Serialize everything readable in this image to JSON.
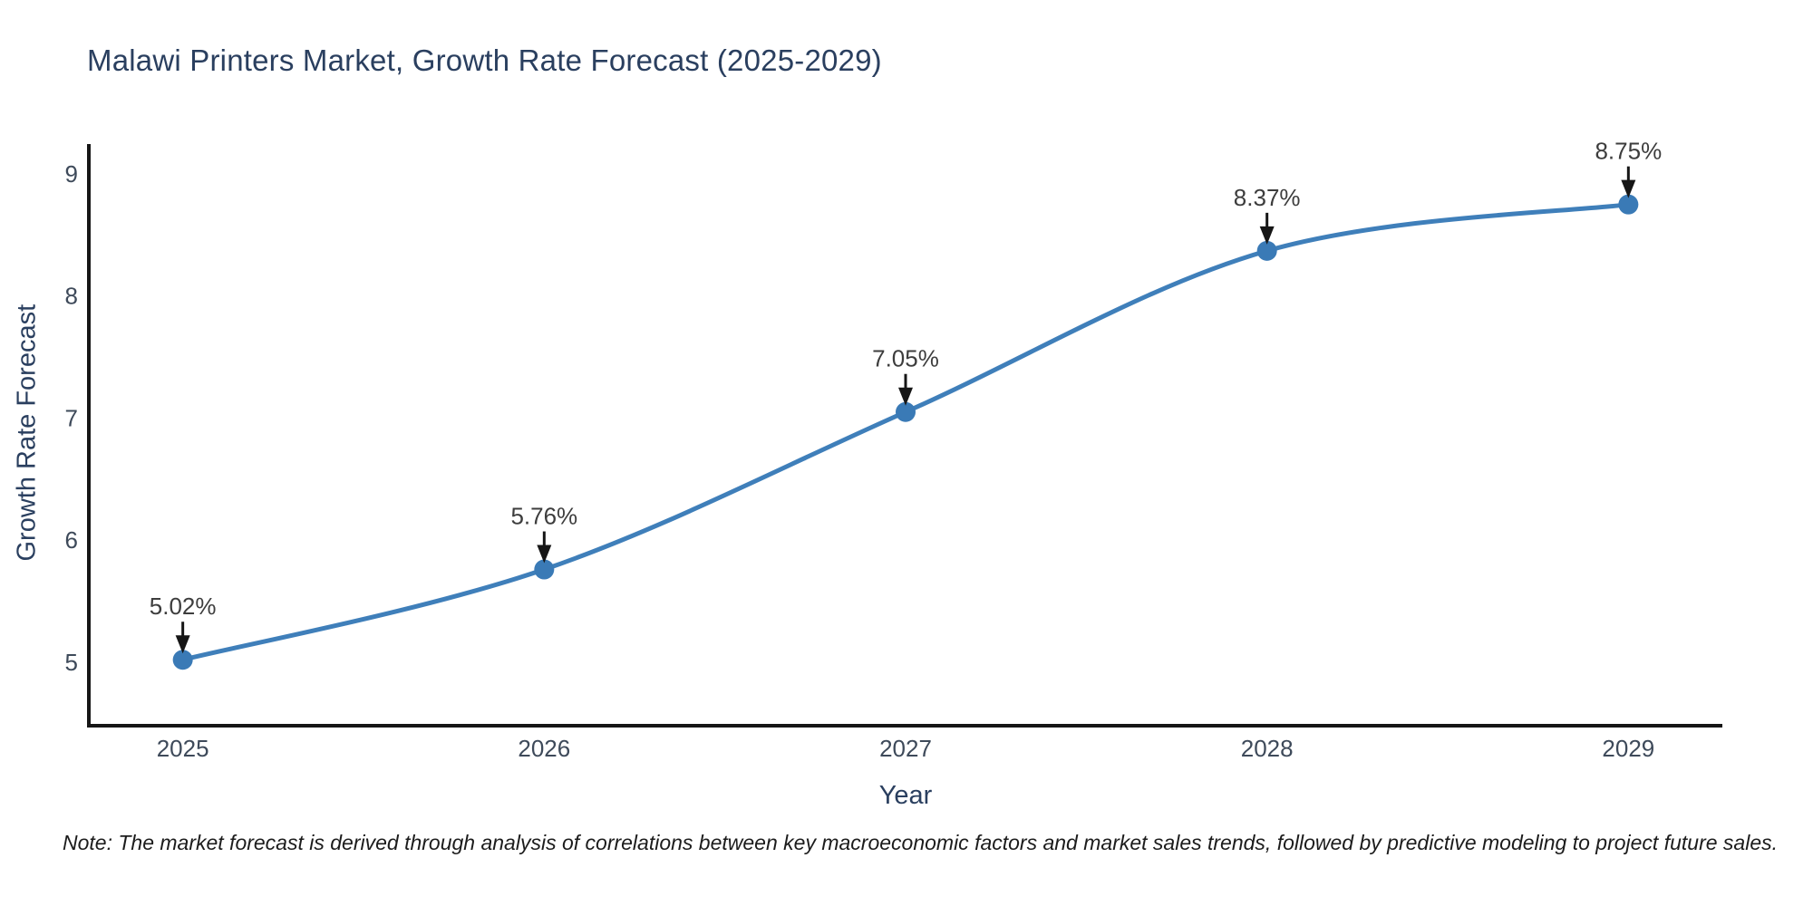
{
  "figure": {
    "title": "Malawi Printers Market, Growth Rate Forecast (2025-2029)",
    "note": "Note: The market forecast is derived through analysis of correlations between key macroeconomic factors and market sales trends, followed by predictive modeling to project future sales."
  },
  "chart_data": {
    "type": "line",
    "title": "Malawi Printers Market, Growth Rate Forecast (2025-2029)",
    "xlabel": "Year",
    "ylabel": "Growth Rate Forecast",
    "x": [
      2025,
      2026,
      2027,
      2028,
      2029
    ],
    "x_tick_labels": [
      "2025",
      "2026",
      "2027",
      "2028",
      "2029"
    ],
    "series": [
      {
        "name": "Growth Rate Forecast",
        "values": [
          5.02,
          5.76,
          7.05,
          8.37,
          8.75
        ]
      }
    ],
    "point_labels": [
      "5.02%",
      "5.76%",
      "7.05%",
      "8.37%",
      "8.75%"
    ],
    "yticks": [
      5,
      6,
      7,
      8,
      9
    ],
    "ylim": [
      4.48,
      9.23
    ],
    "xlim": [
      2024.74,
      2029.26
    ],
    "grid": false,
    "legend": "none",
    "line_shape": "spline",
    "annotations_have_arrows": true,
    "colors": {
      "line": "#3f7fba",
      "marker": "#3a7ab6",
      "axis": "#161616",
      "axis_title": "#2a3f5f",
      "tick_label": "#3e4a5a",
      "annotation_text": "#3d3d3d",
      "arrow": "#161616",
      "note_text": "#1c1c1c",
      "background": "#ffffff"
    }
  }
}
